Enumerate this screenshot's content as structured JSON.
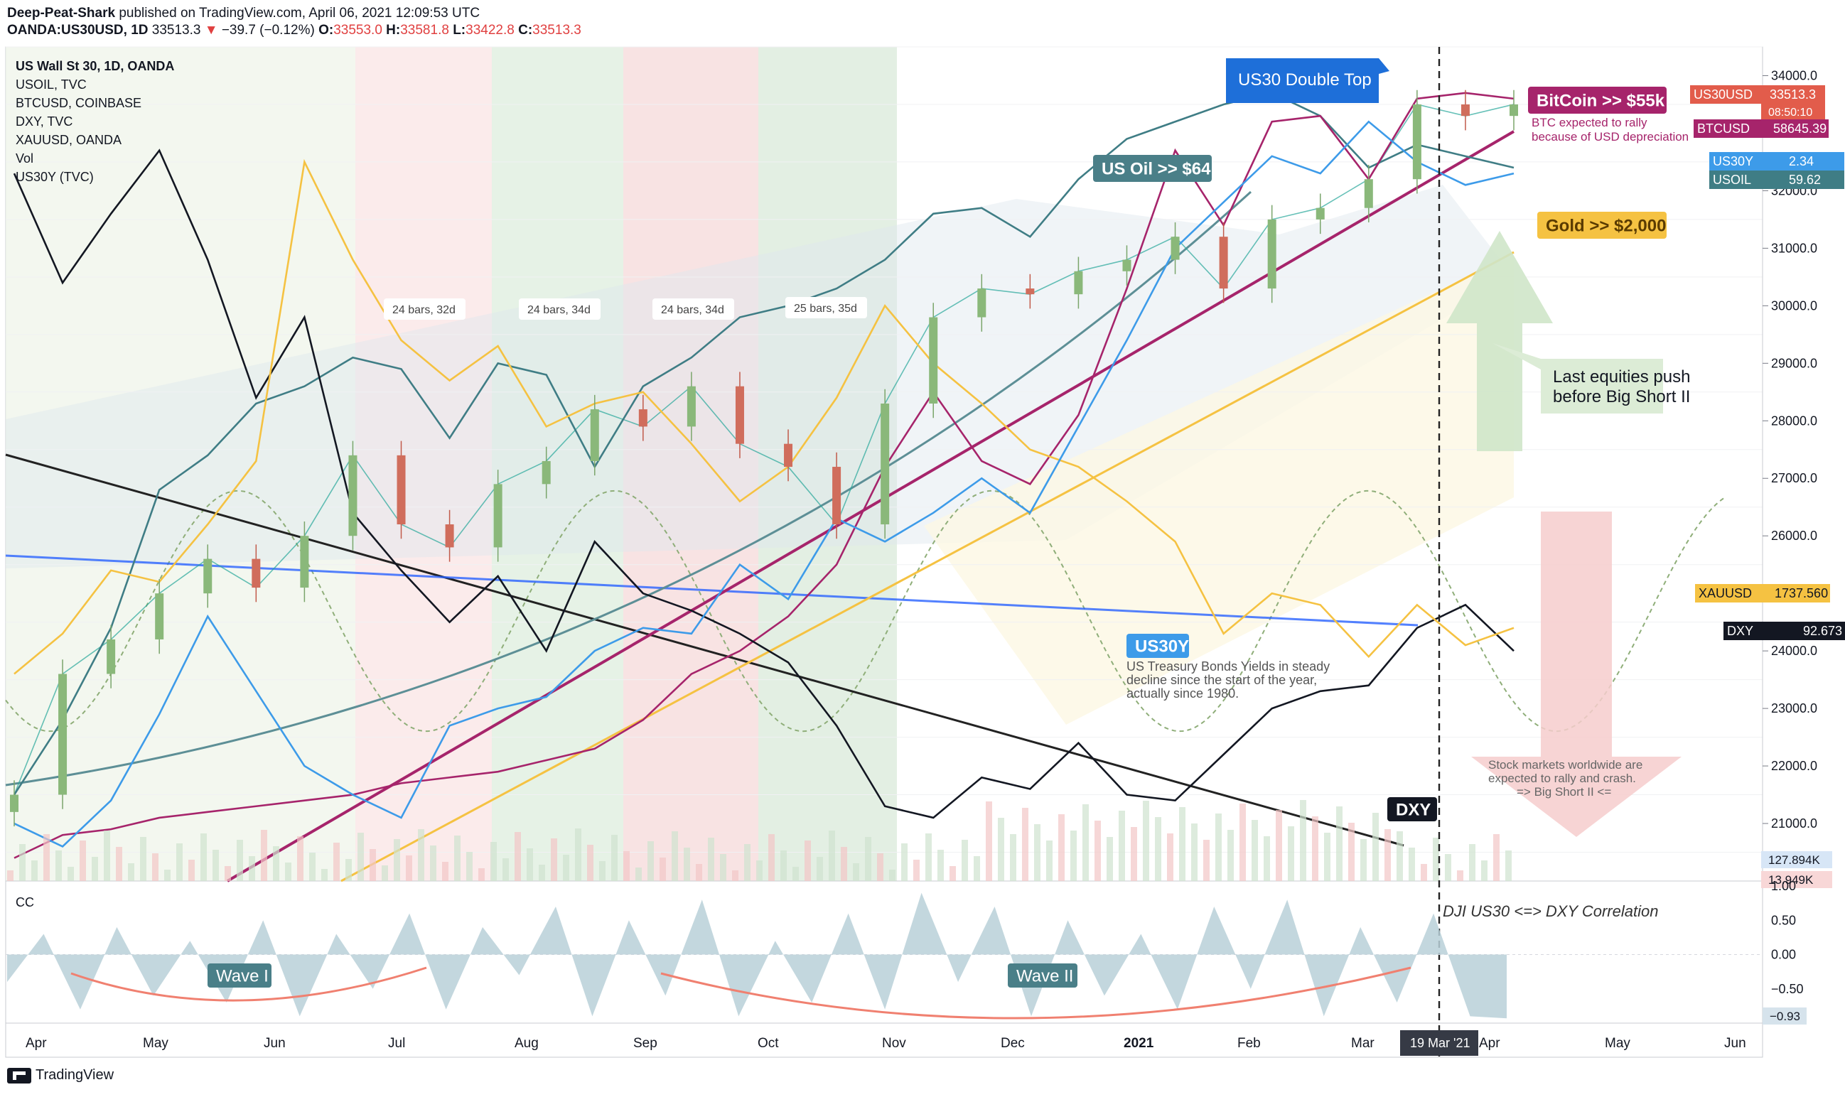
{
  "header": {
    "author": "Deep-Peat-Shark",
    "published_text": "published on TradingView.com, April 06, 2021 12:09:53 UTC",
    "symbol": "OANDA:US30USD, 1D",
    "last": "33513.3",
    "change": "−39.7 (−0.12%)",
    "o_label": "O:",
    "o_value": "33553.0",
    "h_label": "H:",
    "h_value": "33581.8",
    "l_label": "L:",
    "l_value": "33422.8",
    "c_label": "C:",
    "c_value": "33513.3"
  },
  "legend": [
    "US Wall St 30, 1D, OANDA",
    "USOIL, TVC",
    "BTCUSD, COINBASE",
    "DXY, TVC",
    "XAUUSD, OANDA",
    "Vol",
    "US30Y (TVC)"
  ],
  "footer": {
    "brand": "TradingView"
  },
  "colors": {
    "us30_up": "#26a69a",
    "us30_down": "#ef5350",
    "usoil": "#3f7d85",
    "btc": "#a6246b",
    "dxy": "#131722",
    "gold": "#f5c242",
    "us30y": "#3d9be9",
    "red_zone": "#f7c7c7",
    "green_zone": "#cfe8cf"
  },
  "chart_data": [
    {
      "type": "line",
      "title": "US Wall St 30, 1D, OANDA (with USOIL, BTCUSD, DXY, XAUUSD, US30Y overlays)",
      "x_ticks": [
        "Apr",
        "May",
        "Jun",
        "Jul",
        "Aug",
        "Sep",
        "Oct",
        "Nov",
        "Dec",
        "2021",
        "Feb",
        "Mar",
        "Apr",
        "May",
        "Jun"
      ],
      "y_ticks": [
        "34000.0",
        "33000.0",
        "32000.0",
        "31000.0",
        "30000.0",
        "29000.0",
        "28000.0",
        "27000.0",
        "26000.0",
        "25000.0",
        "24000.0",
        "23000.0",
        "22000.0",
        "21000.0"
      ],
      "ylim": [
        20000,
        34500
      ],
      "series": [
        {
          "name": "US30 (candles)",
          "color": "#26a69a",
          "values": [
            21500,
            23600,
            24200,
            25000,
            25600,
            25100,
            26000,
            27400,
            26200,
            25800,
            26900,
            27300,
            28200,
            27900,
            28600,
            27600,
            27200,
            26200,
            28300,
            29800,
            30300,
            30200,
            30600,
            30800,
            31200,
            30300,
            31500,
            31700,
            32200,
            33500,
            33300,
            33500
          ]
        },
        {
          "name": "USOIL",
          "color": "#3f7d85",
          "values": [
            21500,
            22800,
            24400,
            26800,
            27400,
            28300,
            28600,
            29100,
            28900,
            27700,
            29000,
            28800,
            27200,
            28600,
            29100,
            29800,
            30000,
            30300,
            30800,
            31600,
            31700,
            31200,
            32200,
            32900,
            33200,
            33500,
            33700,
            33300,
            32400,
            32800,
            32600,
            32400
          ]
        },
        {
          "name": "BTCUSD",
          "color": "#a6246b",
          "values": [
            20400,
            20800,
            20900,
            21100,
            21200,
            21300,
            21400,
            21500,
            21700,
            21800,
            21900,
            22100,
            22300,
            22800,
            23600,
            24000,
            24600,
            25500,
            27200,
            28500,
            27300,
            26900,
            28100,
            30300,
            32700,
            31400,
            33200,
            33300,
            32200,
            33600,
            33700,
            33600
          ]
        },
        {
          "name": "DXY",
          "color": "#131722",
          "values": [
            32300,
            30400,
            31600,
            32700,
            30800,
            28400,
            29800,
            26400,
            25400,
            24500,
            25300,
            24000,
            25900,
            25000,
            24700,
            24300,
            23800,
            22700,
            21300,
            21100,
            21800,
            21600,
            22400,
            21500,
            21400,
            22200,
            23000,
            23300,
            23400,
            24400,
            24800,
            24000
          ]
        },
        {
          "name": "XAUUSD",
          "color": "#f5c242",
          "values": [
            23600,
            24300,
            25400,
            25200,
            26200,
            27300,
            32500,
            30800,
            29400,
            28700,
            29300,
            27900,
            28300,
            28500,
            27600,
            26600,
            27200,
            28400,
            30000,
            29000,
            28300,
            27500,
            27200,
            26600,
            25900,
            24300,
            25000,
            24800,
            23900,
            24800,
            24100,
            24400
          ]
        },
        {
          "name": "US30Y",
          "color": "#3d9be9",
          "values": [
            21000,
            20600,
            21400,
            22900,
            24600,
            23300,
            22000,
            21500,
            21100,
            22700,
            23000,
            23200,
            24000,
            24400,
            24300,
            25500,
            24900,
            26300,
            25900,
            26400,
            27000,
            26400,
            27900,
            29400,
            31000,
            31800,
            32600,
            32300,
            33200,
            32500,
            32100,
            32300
          ]
        }
      ],
      "annotations": [
        {
          "text": "US30 Double Top",
          "color": "#1e6fd9"
        },
        {
          "text": "BitCoin >> $55k",
          "color": "#a6246b"
        },
        {
          "text": "BTC expected to rally"
        },
        {
          "text": "because of USD depreciation"
        },
        {
          "text": "US Oil >> $64",
          "color": "#4a7f88"
        },
        {
          "text": "Gold >> $2,000",
          "color": "#f5c242"
        },
        {
          "text": "Last equities push"
        },
        {
          "text": "before Big Short II"
        },
        {
          "text": "US30Y",
          "color": "#3d9be9"
        },
        {
          "text": "US Treasury Bonds Yields in steady"
        },
        {
          "text": "decline since the start of the year,"
        },
        {
          "text": "actually since 1980."
        },
        {
          "text": "DXY",
          "color": "#131722"
        },
        {
          "text": "Stock markets worldwide are"
        },
        {
          "text": "expected to rally and crash."
        },
        {
          "text": "=> Big Short II <="
        },
        {
          "text": "24 bars, 32d"
        },
        {
          "text": "24 bars, 34d"
        },
        {
          "text": "24 bars, 34d"
        },
        {
          "text": "25 bars, 35d"
        }
      ],
      "price_labels": [
        {
          "name": "US30USD",
          "value": "33513.3",
          "sub": "08:50:10",
          "color": "#e25c4b"
        },
        {
          "name": "BTCUSD",
          "value": "58645.39",
          "color": "#a6246b"
        },
        {
          "name": "US30Y",
          "value": "2.34",
          "color": "#3d9be9"
        },
        {
          "name": "USOIL",
          "value": "59.62",
          "color": "#3f7d85"
        },
        {
          "name": "XAUUSD",
          "value": "1737.560",
          "color": "#f5c242"
        },
        {
          "name": "DXY",
          "value": "92.673",
          "color": "#131722"
        }
      ],
      "volume_labels": [
        "127.894K",
        "13.949K"
      ],
      "vline_label": "19 Mar '21"
    },
    {
      "type": "area",
      "title": "CC",
      "label": "DJI US30 <=> DXY Correlation",
      "y_ticks": [
        "1.00",
        "0.50",
        "0.00",
        "−0.50"
      ],
      "ylim": [
        -1,
        1
      ],
      "last_value": "−0.93",
      "values": [
        -0.4,
        0.3,
        -0.8,
        0.4,
        -0.6,
        0.2,
        -0.7,
        0.5,
        -0.9,
        0.3,
        -0.5,
        0.6,
        -0.8,
        0.4,
        -0.3,
        0.7,
        -0.9,
        0.5,
        -0.6,
        0.8,
        -0.9,
        0.2,
        -0.7,
        0.6,
        -0.8,
        0.9,
        -0.4,
        0.7,
        -0.9,
        0.5,
        -0.6,
        0.3,
        -0.8,
        0.7,
        -0.5,
        0.8,
        -0.9,
        0.4,
        -0.7,
        0.6,
        -0.9,
        -0.93
      ],
      "annotations": [
        {
          "text": "Wave I"
        },
        {
          "text": "Wave II"
        }
      ]
    }
  ]
}
